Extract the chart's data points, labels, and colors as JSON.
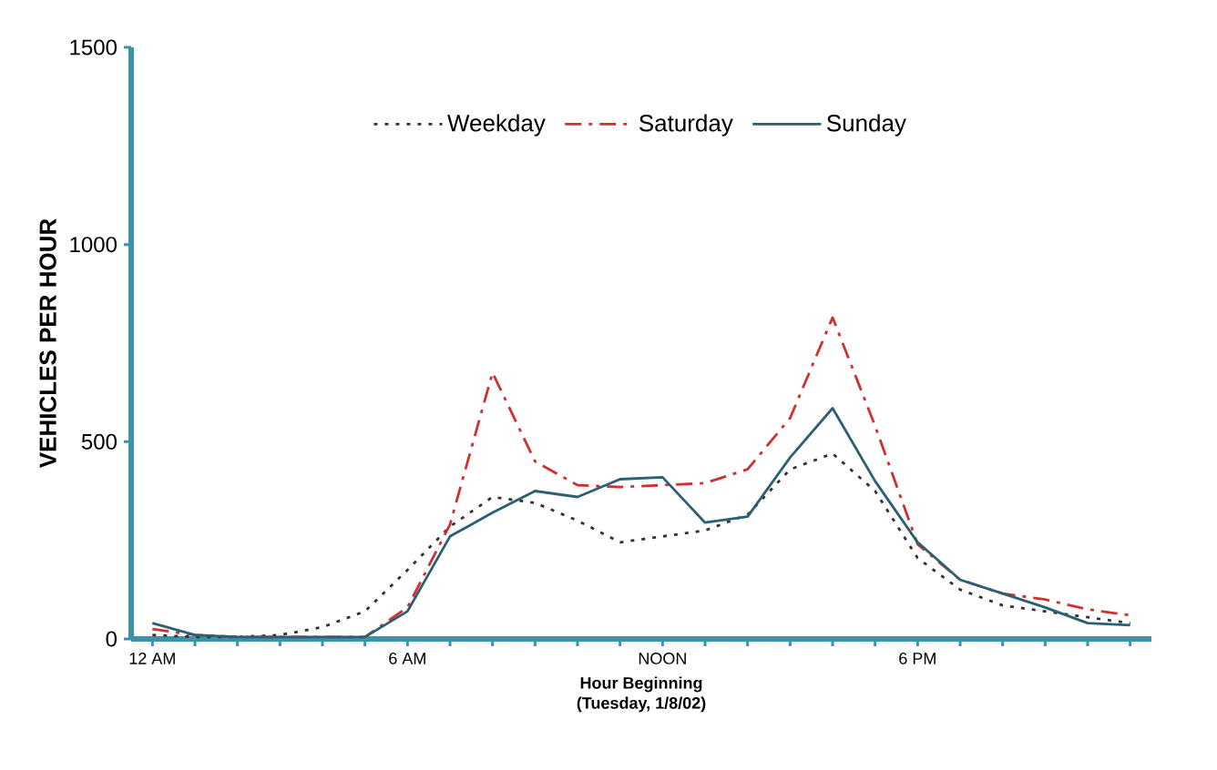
{
  "chart_data": {
    "type": "line",
    "xlabel": "Hour Beginning\n(Tuesday, 1/8/02)",
    "ylabel": "VEHICLES PER HOUR",
    "categories": [
      "12 AM",
      null,
      null,
      null,
      null,
      null,
      "6 AM",
      null,
      null,
      null,
      null,
      null,
      "NOON",
      null,
      null,
      null,
      null,
      null,
      "6 PM",
      null,
      null,
      null,
      null,
      null
    ],
    "series": [
      {
        "name": "Weekday",
        "color": "#333333",
        "line_style": "dotted",
        "values": [
          10,
          5,
          5,
          10,
          30,
          70,
          175,
          285,
          360,
          345,
          300,
          245,
          260,
          275,
          315,
          430,
          470,
          375,
          205,
          125,
          85,
          70,
          55,
          40
        ]
      },
      {
        "name": "Saturday",
        "color": "#d03030",
        "line_style": "dashed",
        "values": [
          25,
          10,
          5,
          5,
          5,
          5,
          80,
          290,
          675,
          450,
          390,
          385,
          390,
          395,
          430,
          560,
          815,
          540,
          240,
          150,
          115,
          100,
          75,
          60
        ]
      },
      {
        "name": "Sunday",
        "color": "#2b5f73",
        "line_style": "solid",
        "values": [
          40,
          10,
          5,
          5,
          5,
          5,
          70,
          260,
          320,
          375,
          360,
          405,
          410,
          295,
          310,
          460,
          585,
          400,
          245,
          150,
          115,
          80,
          40,
          35
        ]
      }
    ],
    "ylim": [
      0,
      1500
    ],
    "yticks": [
      0,
      500,
      1000,
      1500
    ],
    "grid": false,
    "legend": "top",
    "marker": "none"
  }
}
